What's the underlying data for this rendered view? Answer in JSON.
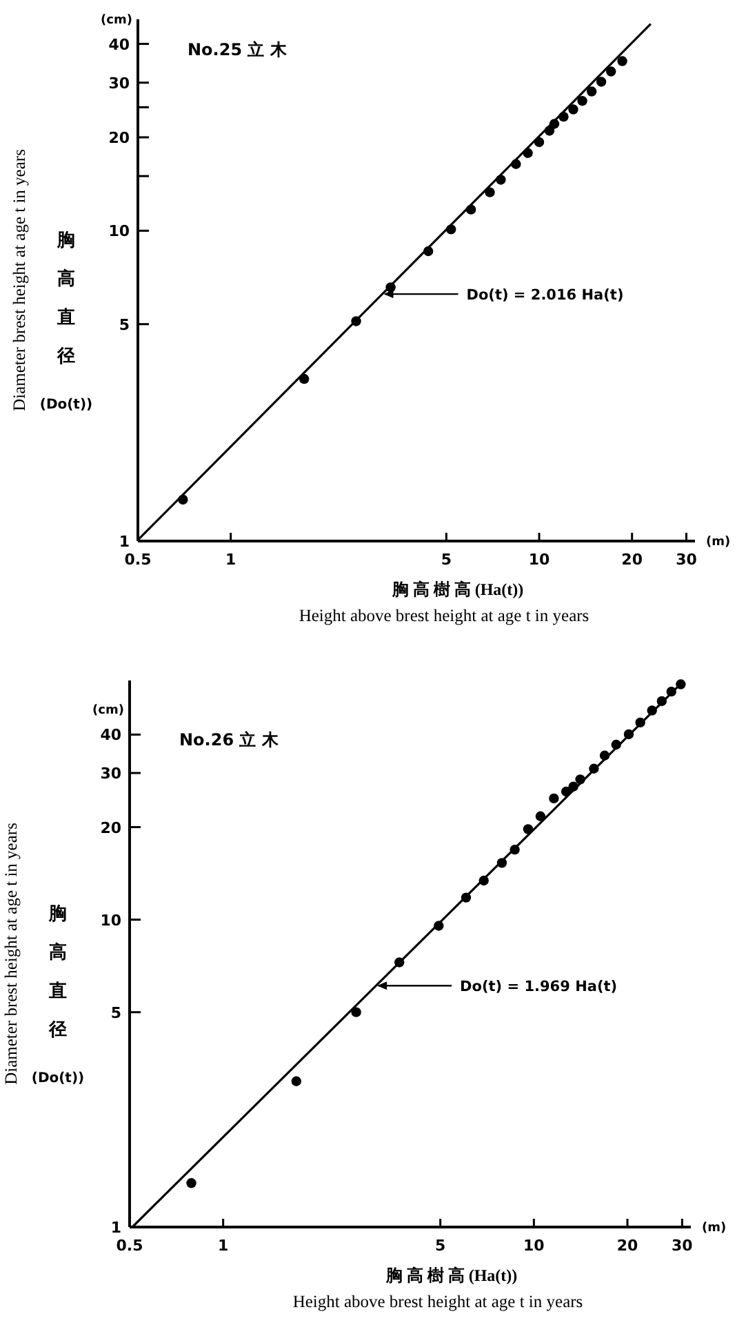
{
  "chart_data": [
    {
      "type": "scatter",
      "title": "No.25 立 木",
      "xlabel": "胸 高 樹 高 (Ha(t))",
      "ylabel": "Diameter brest height at age t in years",
      "log": "xy",
      "marker": "circle",
      "xlim": [
        0.5,
        32
      ],
      "ylim": [
        1,
        48
      ],
      "xticks": [
        {
          "value": 0.5,
          "label": "0.5"
        },
        1,
        5,
        10,
        20,
        30
      ],
      "yticks": [
        1,
        5,
        10,
        {
          "value": 15,
          "label": null
        },
        20,
        {
          "value": 25,
          "label": null
        },
        30,
        40
      ],
      "series": [
        {
          "type": "scatter",
          "color": "#000000",
          "x": [
            0.7,
            1.73,
            2.55,
            3.3,
            4.37,
            5.18,
            6.01,
            6.92,
            7.51,
            8.41,
            9.19,
            10.0,
            10.8,
            11.2,
            12.0,
            12.9,
            13.8,
            14.8,
            15.9,
            17.1,
            18.6
          ],
          "values": [
            1.36,
            3.33,
            5.11,
            6.57,
            8.59,
            10.1,
            11.7,
            13.3,
            14.6,
            16.4,
            17.8,
            19.3,
            21.0,
            22.1,
            23.3,
            24.6,
            26.2,
            28.1,
            30.2,
            32.6,
            35.2
          ]
        },
        {
          "type": "line",
          "marker": "none",
          "color": "#000000",
          "x": [
            0.5,
            23
          ],
          "values": [
            1.008,
            46.4
          ]
        }
      ],
      "annotations": [
        {
          "text": "Do(t) = 2.016 Ha(t)",
          "x": 3.1,
          "y": 6.25
        },
        "(cm)",
        "(m)",
        "Height above brest height at age t in years",
        "胸高直径 (Do(t))"
      ]
    },
    {
      "type": "scatter",
      "title": "No.26 立 木",
      "xlabel": "胸 高 樹 高 (Ha(t))",
      "ylabel": "Diameter brest height at age t in years",
      "log": "xy",
      "marker": "circle",
      "xlim": [
        0.5,
        32
      ],
      "ylim": [
        1,
        60
      ],
      "xticks": [
        {
          "value": 0.5,
          "label": "0.5"
        },
        1,
        5,
        10,
        20,
        30
      ],
      "yticks": [
        1,
        5,
        10,
        20,
        30,
        40
      ],
      "series": [
        {
          "type": "scatter",
          "color": "#000000",
          "x": [
            0.79,
            1.72,
            2.68,
            3.69,
            4.94,
            6.05,
            6.9,
            7.89,
            8.68,
            9.58,
            10.5,
            11.6,
            12.7,
            13.4,
            14.1,
            15.6,
            16.9,
            18.4,
            20.2,
            22.0,
            24.0,
            25.8,
            27.7,
            29.7
          ],
          "values": [
            1.39,
            2.98,
            5.0,
            7.26,
            9.55,
            11.8,
            13.4,
            15.3,
            16.9,
            19.7,
            21.7,
            24.8,
            26.1,
            27.1,
            28.6,
            31.0,
            34.2,
            37.1,
            40.1,
            43.8,
            47.9,
            51.4,
            55.2,
            58.3
          ]
        },
        {
          "type": "line",
          "marker": "none",
          "color": "#000000",
          "x": [
            0.51,
            30
          ],
          "values": [
            1.0,
            59.1
          ]
        }
      ],
      "annotations": [
        {
          "text": "Do(t) = 1.969 Ha(t)",
          "x": 3.1,
          "y": 6.1
        },
        "(cm)",
        "(m)",
        "Height above brest height at age t in years",
        "胸高直径 (Do(t))"
      ]
    }
  ]
}
